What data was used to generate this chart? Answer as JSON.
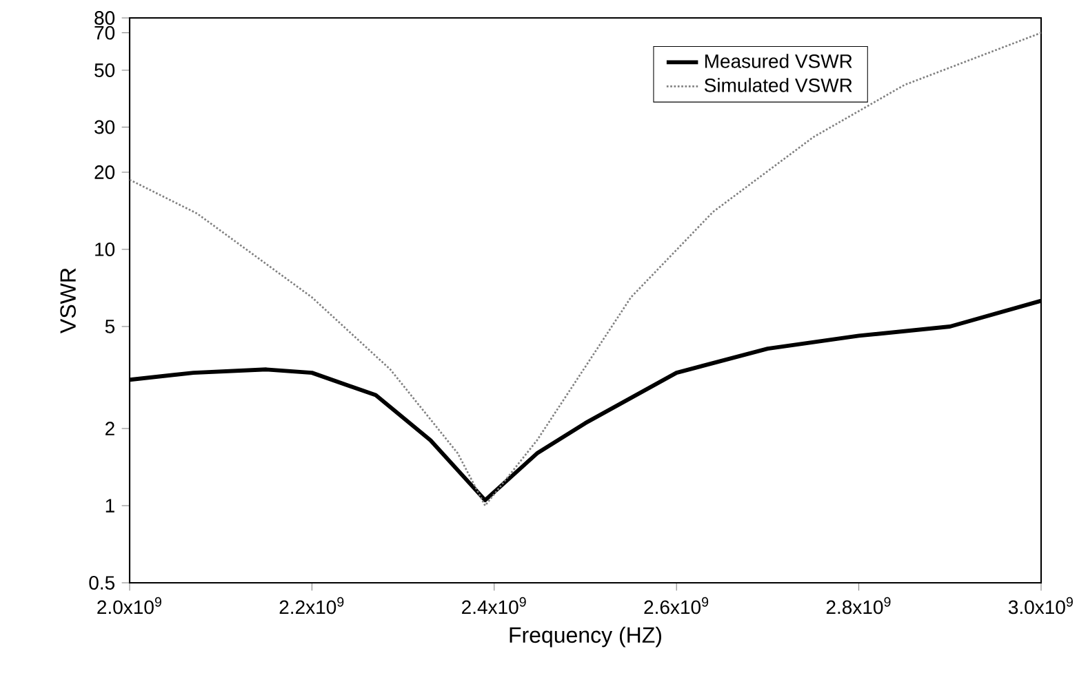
{
  "chart_data": {
    "type": "line",
    "xlabel": "Frequency (HZ)",
    "ylabel": "VSWR",
    "log": "y",
    "legend": "top right",
    "xlim": [
      2000000000.0,
      3000000000.0
    ],
    "xticks": [
      {
        "value": 2000000000.0,
        "label": "2.0x10$^{9}$"
      },
      {
        "value": 2200000000.0,
        "label": "2.2x10$^{9}$"
      },
      {
        "value": 2400000000.0,
        "label": "2.4x10$^{9}$"
      },
      {
        "value": 2600000000.0,
        "label": "2.6x10$^{9}$"
      },
      {
        "value": 2800000000.0,
        "label": "2.8x10$^{9}$"
      },
      {
        "value": 3000000000.0,
        "label": "3.0x10$^{9}$"
      }
    ],
    "ylim": [
      0.5,
      80
    ],
    "yticks": [
      0.5,
      1,
      2,
      5,
      10,
      20,
      30,
      50,
      70,
      80
    ],
    "series": [
      {
        "name": "Measured VSWR",
        "color": "#000000",
        "line_style": "solid",
        "x": [
          2000000000.0,
          2070000000.0,
          2150000000.0,
          2200000000.0,
          2270000000.0,
          2330000000.0,
          2390000000.0,
          2447000000.0,
          2500000000.0,
          2600000000.0,
          2700000000.0,
          2800000000.0,
          2900000000.0,
          3000000000.0
        ],
        "values": [
          3.1,
          3.3,
          3.4,
          3.3,
          2.7,
          1.8,
          1.05,
          1.6,
          2.1,
          3.3,
          4.1,
          4.6,
          5.0,
          6.3
        ]
      },
      {
        "name": "Simulated VSWR",
        "color": "#808080",
        "line_style": "dotted",
        "x": [
          2000000000.0,
          2074000000.0,
          2200000000.0,
          2286000000.0,
          2360000000.0,
          2390000000.0,
          2447000000.0,
          2550000000.0,
          2640000000.0,
          2750000000.0,
          2850000000.0,
          3000000000.0
        ],
        "values": [
          18.7,
          13.8,
          6.5,
          3.4,
          1.6,
          1.0,
          1.8,
          6.5,
          14,
          27.4,
          43.8,
          70
        ]
      }
    ]
  }
}
